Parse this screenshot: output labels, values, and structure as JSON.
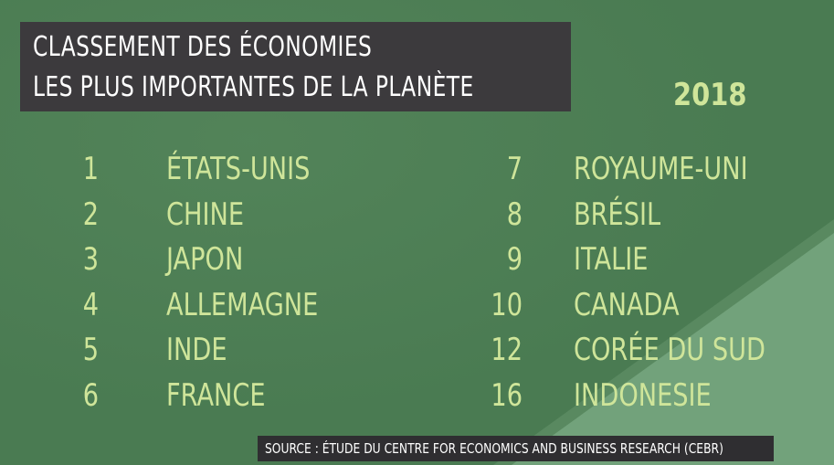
{
  "title": {
    "line1": "CLASSEMENT DES ÉCONOMIES",
    "line2": "LES PLUS IMPORTANTES DE LA PLANÈTE"
  },
  "year": "2018",
  "left_column": [
    {
      "rank": "1",
      "country": "ÉTATS-UNIS"
    },
    {
      "rank": "2",
      "country": "CHINE"
    },
    {
      "rank": "3",
      "country": "JAPON"
    },
    {
      "rank": "4",
      "country": "ALLEMAGNE"
    },
    {
      "rank": "5",
      "country": "INDE"
    },
    {
      "rank": "6",
      "country": "FRANCE"
    }
  ],
  "right_column": [
    {
      "rank": "7",
      "country": "ROYAUME-UNI"
    },
    {
      "rank": "8",
      "country": "BRÉSIL"
    },
    {
      "rank": "9",
      "country": "ITALIE"
    },
    {
      "rank": "10",
      "country": "CANADA"
    },
    {
      "rank": "12",
      "country": "CORÉE DU SUD"
    },
    {
      "rank": "16",
      "country": "INDONESIE"
    }
  ],
  "source": "SOURCE : ÉTUDE DU CENTRE FOR ECONOMICS AND BUSINESS RESEARCH (CEBR)",
  "colors": {
    "background": "#4a7b52",
    "diagonal": "#6fa07a",
    "text_accent": "#cfe59a",
    "title_box": "#3c3a3d"
  }
}
